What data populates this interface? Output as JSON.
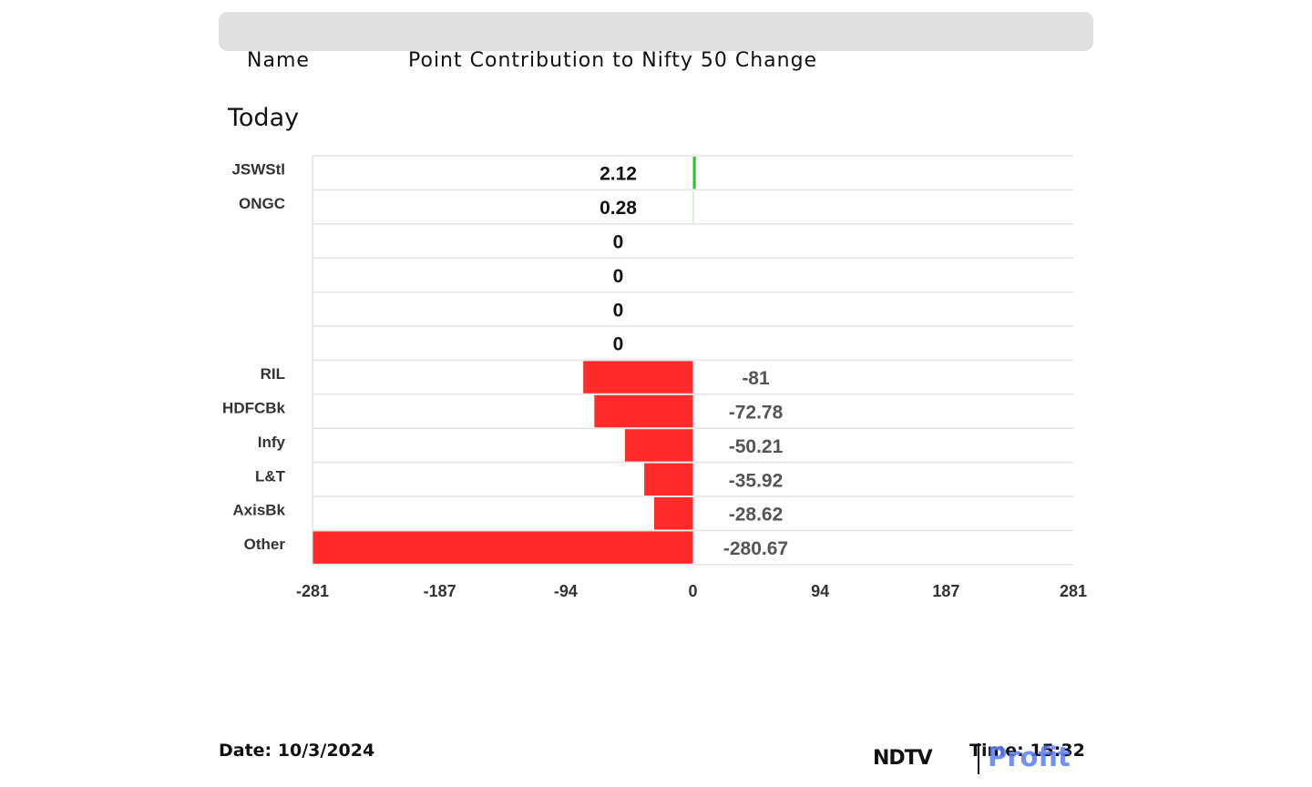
{
  "header": {
    "name_label": "Name",
    "contribution_label": "Point Contribution to Nifty 50 Change"
  },
  "period": "Today",
  "chart_data": {
    "type": "bar",
    "orientation": "horizontal",
    "categories": [
      "JSWStl",
      "ONGC",
      "",
      "",
      "",
      "",
      "RIL",
      "HDFCBk",
      "Infy",
      "L&T",
      "AxisBk",
      "Other"
    ],
    "values": [
      2.12,
      0.28,
      0,
      0,
      0,
      0,
      -81,
      -72.78,
      -50.21,
      -35.92,
      -28.62,
      -280.67
    ],
    "value_labels": [
      "2.12",
      "0.28",
      "0",
      "0",
      "0",
      "0",
      "-81",
      "-72.78",
      "-50.21",
      "-35.92",
      "-28.62",
      "-280.67"
    ],
    "xlim": [
      -281,
      281
    ],
    "xticks": [
      -281,
      -187,
      -94,
      0,
      94,
      187,
      281
    ],
    "xtick_labels": [
      "-281",
      "-187",
      "-94",
      "0",
      "94",
      "187",
      "281"
    ],
    "grid": true,
    "colors": {
      "positive": "#22cc22",
      "negative": "#ff2a2a",
      "gridline": "#e3e3e3",
      "positive_label": "#111111",
      "negative_label": "#555555",
      "category_label": "#333333"
    }
  },
  "footer": {
    "date": "Date: 10/3/2024",
    "time": "Time: 15:32",
    "logo_primary": "NDTV",
    "logo_secondary": "Profit"
  }
}
